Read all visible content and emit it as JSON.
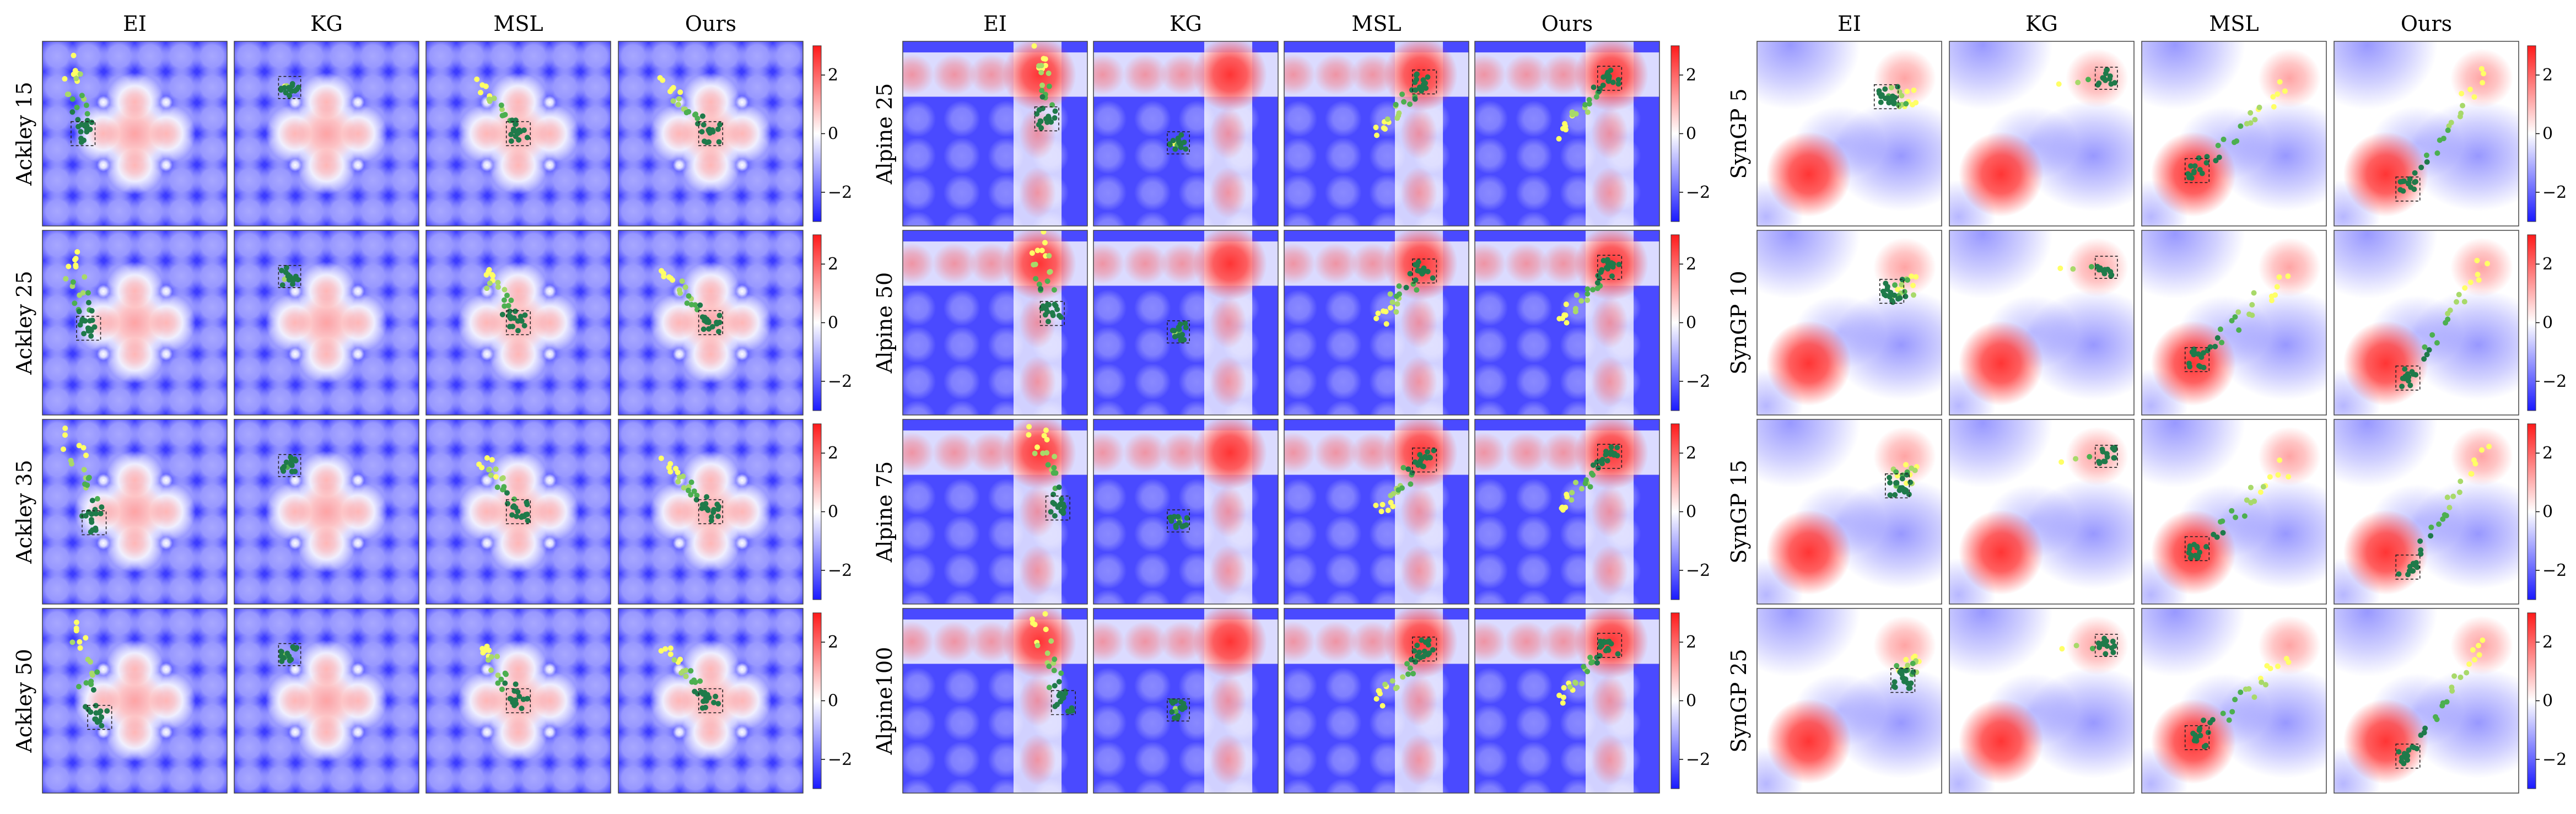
{
  "chart_data": {
    "type": "heatmap",
    "colormap": [
      "#1a1aff",
      "#ffffff",
      "#ff1a1a"
    ],
    "colorbar": {
      "ticks": [
        2,
        0,
        -2
      ],
      "tick_labels": [
        "2",
        "0",
        "−2"
      ],
      "range": [
        -3,
        3
      ]
    },
    "marker_colors": [
      "#ffff66",
      "#a8d96a",
      "#4caf50",
      "#1f7a4a"
    ],
    "groups": [
      {
        "function": "ackley",
        "columns": [
          "EI",
          "KG",
          "MSL",
          "Ours"
        ],
        "rows": [
          "Ackley  15",
          "Ackley  25",
          "Ackley  35",
          "Ackley 50"
        ]
      },
      {
        "function": "alpine",
        "columns": [
          "EI",
          "KG",
          "MSL",
          "Ours"
        ],
        "rows": [
          "Alpine 25",
          "Alpine 50",
          "Alpine 75",
          "Alpine100"
        ]
      },
      {
        "function": "syngp",
        "columns": [
          "EI",
          "KG",
          "MSL",
          "Ours"
        ],
        "rows": [
          "SynGP  5",
          "SynGP  10",
          "SynGP  15",
          "SynGP  25"
        ]
      }
    ]
  }
}
